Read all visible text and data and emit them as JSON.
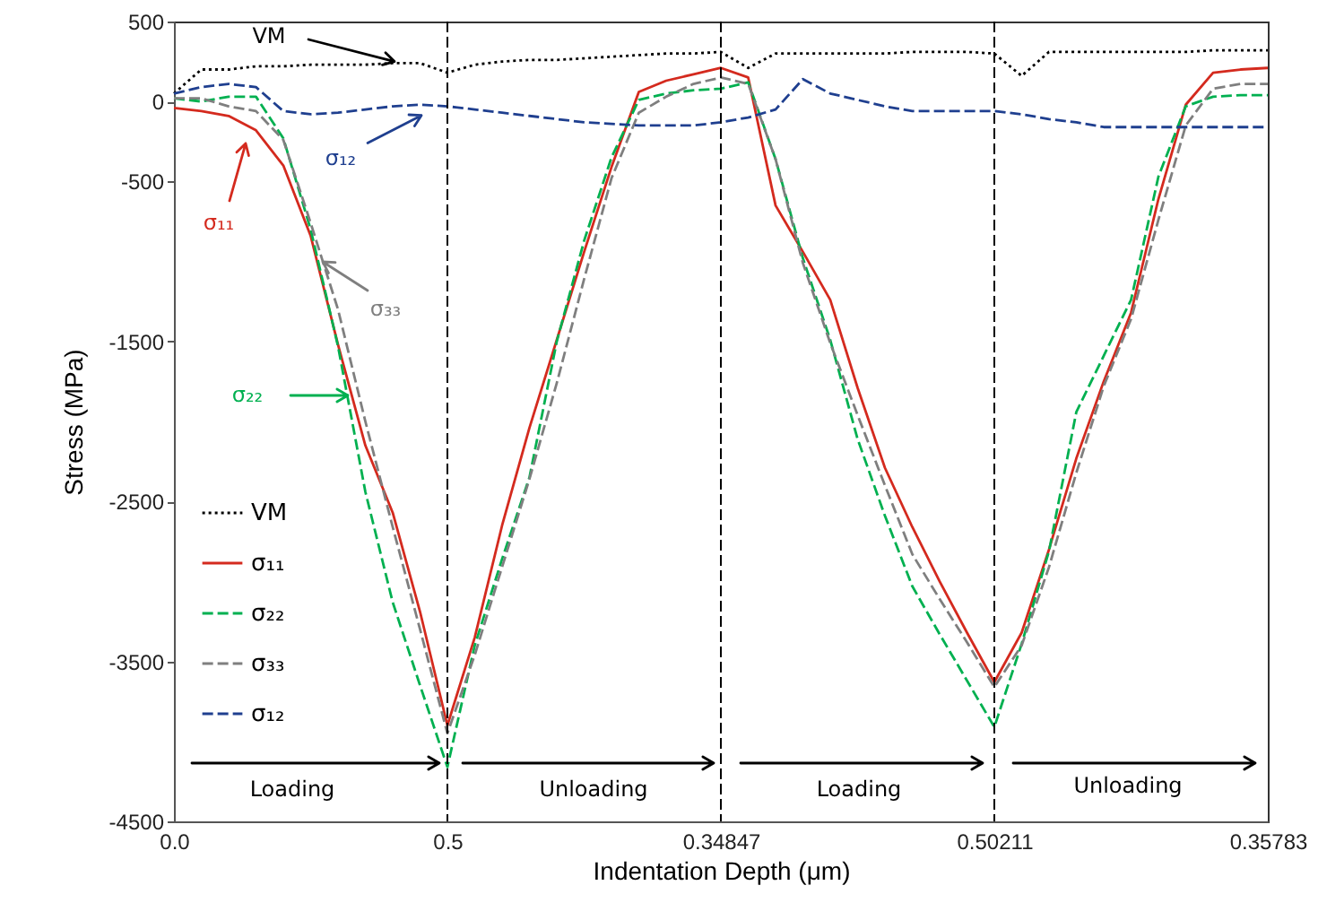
{
  "chart_data": {
    "type": "line",
    "xlabel": "Indentation Depth (μm)",
    "ylabel": "Stress (MPa)",
    "categories": [
      "0.0",
      null,
      null,
      null,
      null,
      null,
      null,
      null,
      null,
      null,
      "0.5",
      null,
      null,
      null,
      null,
      null,
      null,
      null,
      null,
      null,
      "0.34847",
      null,
      null,
      null,
      null,
      null,
      null,
      null,
      null,
      null,
      "0.50211",
      null,
      null,
      null,
      null,
      null,
      null,
      null,
      null,
      null,
      "0.35783"
    ],
    "ylim": [
      -4500,
      500
    ],
    "yticks": [
      500,
      0,
      -500,
      -1500,
      -2500,
      -3500,
      -4500
    ],
    "legend": "bottom left",
    "series": [
      {
        "name": "VM",
        "color": "#000000",
        "line_style": "dotted",
        "values": [
          50,
          200,
          200,
          220,
          220,
          230,
          230,
          230,
          240,
          240,
          180,
          230,
          250,
          260,
          260,
          270,
          280,
          290,
          300,
          300,
          310,
          210,
          300,
          300,
          300,
          300,
          300,
          310,
          310,
          310,
          300,
          160,
          310,
          310,
          310,
          310,
          310,
          310,
          320,
          320,
          320
        ]
      },
      {
        "name": "σ₁₁",
        "color": "#d42a1e",
        "line_style": "solid",
        "values": [
          -40,
          -60,
          -90,
          -180,
          -400,
          -840,
          -1520,
          -2150,
          -2570,
          -3190,
          -3900,
          -3350,
          -2650,
          -2040,
          -1490,
          -940,
          -410,
          60,
          130,
          170,
          210,
          150,
          -650,
          -940,
          -1240,
          -1790,
          -2290,
          -2660,
          -3000,
          -3320,
          -3630,
          -3320,
          -2800,
          -2230,
          -1750,
          -1320,
          -610,
          -20,
          180,
          200,
          210
        ]
      },
      {
        "name": "σ₂₂",
        "color": "#00b050",
        "line_style": "dashed",
        "values": [
          20,
          0,
          30,
          30,
          -230,
          -800,
          -1530,
          -2440,
          -3130,
          -3650,
          -4160,
          -3400,
          -2860,
          -2350,
          -1500,
          -870,
          -350,
          10,
          50,
          70,
          80,
          120,
          -360,
          -980,
          -1490,
          -2110,
          -2590,
          -3030,
          -3330,
          -3620,
          -3910,
          -3390,
          -2810,
          -1940,
          -1590,
          -1240,
          -470,
          -30,
          30,
          40,
          40
        ]
      },
      {
        "name": "σ₃₃",
        "color": "#7f7f7f",
        "line_style": "dashed",
        "values": [
          20,
          20,
          -30,
          -60,
          -240,
          -760,
          -1300,
          -2000,
          -2660,
          -3300,
          -3950,
          -3460,
          -2910,
          -2360,
          -1760,
          -1110,
          -480,
          -70,
          30,
          110,
          150,
          110,
          -360,
          -1010,
          -1510,
          -1960,
          -2400,
          -2830,
          -3110,
          -3380,
          -3660,
          -3400,
          -2910,
          -2320,
          -1780,
          -1360,
          -740,
          -150,
          80,
          110,
          110
        ]
      },
      {
        "name": "σ₁₂",
        "color": "#1f3f8f",
        "line_style": "dashed",
        "values": [
          50,
          90,
          110,
          90,
          -60,
          -80,
          -70,
          -50,
          -30,
          -20,
          -30,
          -50,
          -70,
          -90,
          -110,
          -130,
          -140,
          -150,
          -150,
          -150,
          -130,
          -100,
          -50,
          140,
          50,
          10,
          -30,
          -60,
          -60,
          -60,
          -60,
          -80,
          -110,
          -130,
          -160,
          -160,
          -160,
          -160,
          -160,
          -160,
          -160
        ]
      }
    ],
    "ref_lines": [
      {
        "axis": "x",
        "value": "0.5",
        "line_style": "dashed",
        "color": "#000000"
      },
      {
        "axis": "x",
        "value": "0.34847",
        "line_style": "dashed",
        "color": "#000000"
      },
      {
        "axis": "x",
        "value": "0.50211",
        "line_style": "dashed",
        "color": "#000000"
      }
    ],
    "annotations": [
      {
        "text": "VM",
        "y": 250
      },
      {
        "text": "σ₁₂",
        "y": -90
      },
      "σ₁₁",
      "σ₃₃",
      "σ₂₂",
      "Loading",
      "Unloading",
      "Loading",
      "Unloading"
    ]
  }
}
